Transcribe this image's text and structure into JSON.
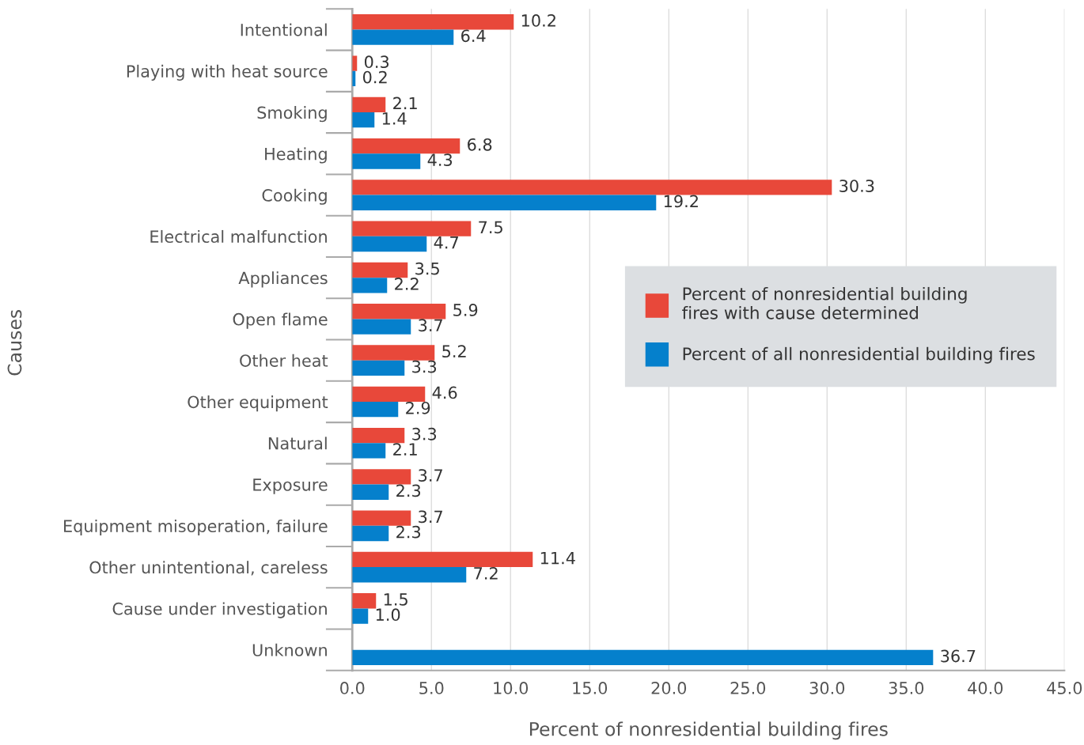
{
  "chart_data": {
    "type": "bar",
    "orientation": "horizontal",
    "xlabel": "Percent of nonresidential building fires",
    "ylabel": "Causes",
    "categories": [
      "Intentional",
      "Playing with heat source",
      "Smoking",
      "Heating",
      "Cooking",
      "Electrical malfunction",
      "Appliances",
      "Open flame",
      "Other heat",
      "Other equipment",
      "Natural",
      "Exposure",
      "Equipment misoperation, failure",
      "Other unintentional, careless",
      "Cause under investigation",
      "Unknown"
    ],
    "series": [
      {
        "name": "Percent of nonresidential building fires with cause determined",
        "color": "#e8483a",
        "values": [
          10.2,
          0.3,
          2.1,
          6.8,
          30.3,
          7.5,
          3.5,
          5.9,
          5.2,
          4.6,
          3.3,
          3.7,
          3.7,
          11.4,
          1.5,
          null
        ],
        "value_labels": [
          "10.2",
          "0.3",
          "2.1",
          "6.8",
          "30.3",
          "7.5",
          "3.5",
          "5.9",
          "5.2",
          "4.6",
          "3.3",
          "3.7",
          "3.7",
          "11.4",
          "1.5",
          null
        ]
      },
      {
        "name": "Percent of all nonresidential building fires",
        "color": "#0580cc",
        "values": [
          6.4,
          0.2,
          1.4,
          4.3,
          19.2,
          4.7,
          2.2,
          3.7,
          3.3,
          2.9,
          2.1,
          2.3,
          2.3,
          7.2,
          1.0,
          36.7
        ],
        "value_labels": [
          "6.4",
          "0.2",
          "1.4",
          "4.3",
          "19.2",
          "4.7",
          "2.2",
          "3.7",
          "3.3",
          "2.9",
          "2.1",
          "2.3",
          "2.3",
          "7.2",
          "1.0",
          "36.7"
        ]
      }
    ],
    "xlim": [
      0,
      45
    ],
    "xticks": [
      {
        "value": 0,
        "label": "0.0"
      },
      {
        "value": 5,
        "label": "5.0"
      },
      {
        "value": 10,
        "label": "10.0"
      },
      {
        "value": 15,
        "label": "15.0"
      },
      {
        "value": 20,
        "label": "20.0"
      },
      {
        "value": 25,
        "label": "25.0"
      },
      {
        "value": 30,
        "label": "30.0"
      },
      {
        "value": 35,
        "label": "35.0"
      },
      {
        "value": 40,
        "label": "40.0"
      },
      {
        "value": 45,
        "label": "45.0"
      }
    ],
    "grid": "x",
    "legend": "right"
  }
}
